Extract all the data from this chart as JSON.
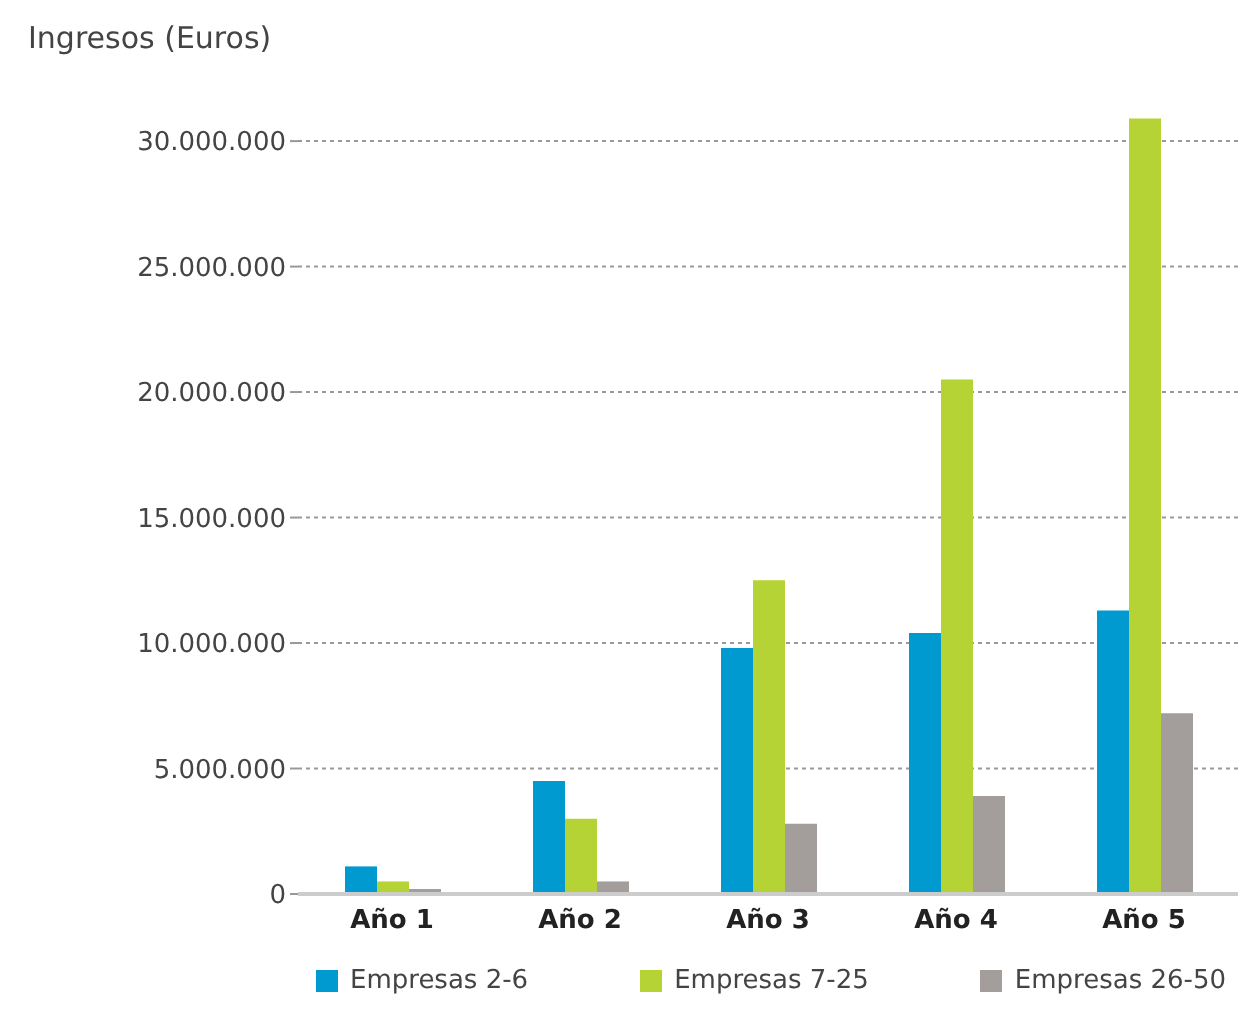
{
  "chart_data": {
    "type": "bar",
    "ylabel": "Ingresos (Euros)",
    "categories": [
      "Año 1",
      "Año 2",
      "Año 3",
      "Año 4",
      "Año 5"
    ],
    "series": [
      {
        "name": "Empresas 2-6",
        "color": "#0099d0",
        "values": [
          1100000,
          4500000,
          9800000,
          10400000,
          11300000
        ]
      },
      {
        "name": "Empresas 7-25",
        "color": "#b5d334",
        "values": [
          500000,
          3000000,
          12500000,
          20500000,
          30900000
        ]
      },
      {
        "name": "Empresas 26-50",
        "color": "#a39e9b",
        "values": [
          200000,
          500000,
          2800000,
          3900000,
          7200000
        ]
      }
    ],
    "ylim": [
      0,
      31000000
    ],
    "yticks": [
      {
        "value": 0,
        "label": "0"
      },
      {
        "value": 5000000,
        "label": "5.000.000"
      },
      {
        "value": 10000000,
        "label": "10.000.000"
      },
      {
        "value": 15000000,
        "label": "15.000.000"
      },
      {
        "value": 20000000,
        "label": "20.000.000"
      },
      {
        "value": 25000000,
        "label": "25.000.000"
      },
      {
        "value": 30000000,
        "label": "30.000.000"
      }
    ],
    "grid": "y",
    "legend": "bottom"
  }
}
